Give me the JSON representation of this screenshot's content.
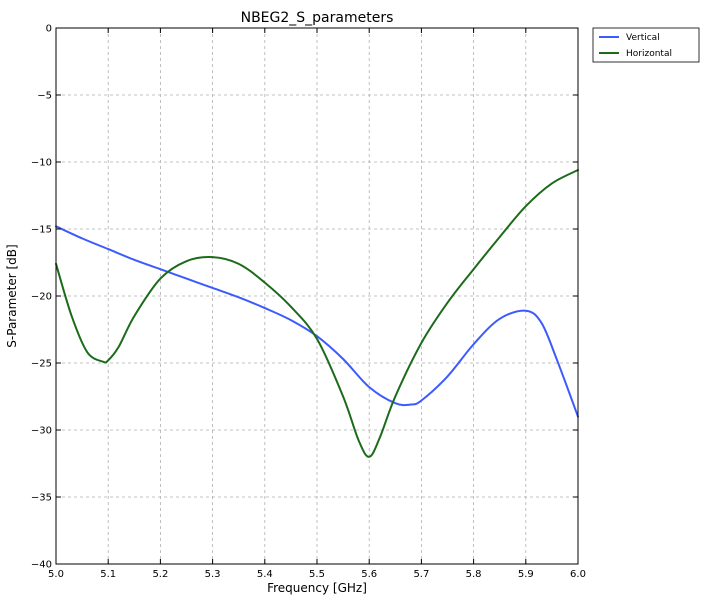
{
  "chart_data": {
    "type": "line",
    "title": "NBEG2_S_parameters",
    "xlabel": "Frequency [GHz]",
    "ylabel": "S-Parameter [dB]",
    "xlim": [
      5.0,
      6.0
    ],
    "ylim": [
      -40,
      0
    ],
    "x_ticks": [
      "5.0",
      "5.1",
      "5.2",
      "5.3",
      "5.4",
      "5.5",
      "5.6",
      "5.7",
      "5.8",
      "5.9",
      "6.0"
    ],
    "y_ticks": [
      "0",
      "−5",
      "−10",
      "−15",
      "−20",
      "−25",
      "−30",
      "−35",
      "−40"
    ],
    "grid": true,
    "legend_position": "outside-top-right",
    "series": [
      {
        "name": "Vertical",
        "color": "#3b5bff",
        "x": [
          5.0,
          5.05,
          5.1,
          5.15,
          5.2,
          5.25,
          5.3,
          5.35,
          5.4,
          5.45,
          5.5,
          5.55,
          5.6,
          5.65,
          5.68,
          5.7,
          5.75,
          5.8,
          5.85,
          5.9,
          5.93,
          5.96,
          6.0
        ],
        "y": [
          -14.8,
          -15.7,
          -16.5,
          -17.3,
          -18.0,
          -18.7,
          -19.4,
          -20.1,
          -20.9,
          -21.8,
          -23.0,
          -24.7,
          -26.8,
          -28.0,
          -28.1,
          -27.8,
          -26.0,
          -23.6,
          -21.7,
          -21.1,
          -22.0,
          -24.8,
          -29.0
        ]
      },
      {
        "name": "Horizontal",
        "color": "#1b6b1b",
        "x": [
          5.0,
          5.03,
          5.06,
          5.09,
          5.1,
          5.12,
          5.15,
          5.2,
          5.25,
          5.3,
          5.35,
          5.4,
          5.45,
          5.5,
          5.55,
          5.58,
          5.6,
          5.62,
          5.65,
          5.7,
          5.75,
          5.8,
          5.85,
          5.9,
          5.95,
          6.0
        ],
        "y": [
          -17.6,
          -21.5,
          -24.2,
          -24.9,
          -24.8,
          -23.8,
          -21.5,
          -18.7,
          -17.4,
          -17.1,
          -17.6,
          -19.0,
          -20.8,
          -23.2,
          -27.5,
          -30.8,
          -32.0,
          -30.6,
          -27.5,
          -23.5,
          -20.5,
          -18.0,
          -15.6,
          -13.3,
          -11.6,
          -10.6
        ]
      }
    ]
  }
}
